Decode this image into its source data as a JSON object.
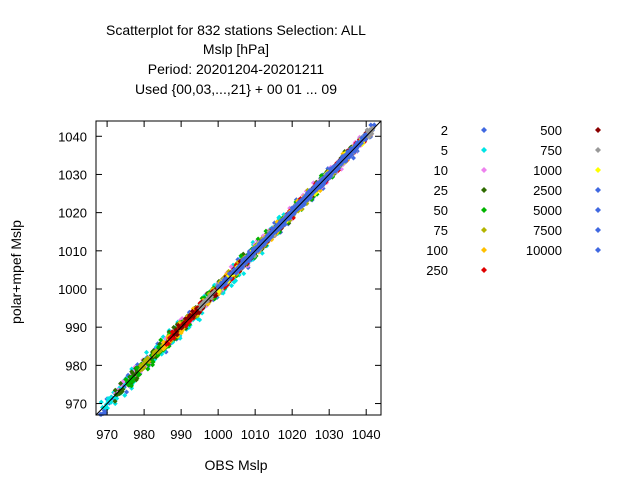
{
  "chart_data": {
    "type": "scatter",
    "title_lines": [
      "Scatterplot for  832 stations Selection: ALL",
      "Mslp [hPa]",
      "Period: 20201204-20201211",
      "Used {00,03,...,21} + 00 01 ... 09"
    ],
    "xlabel": "OBS Mslp",
    "ylabel": "polar+mpef Mslp",
    "xlim": [
      967,
      1044
    ],
    "ylim": [
      967,
      1044
    ],
    "xticks": [
      970,
      980,
      990,
      1000,
      1010,
      1020,
      1030,
      1040
    ],
    "yticks": [
      970,
      980,
      990,
      1000,
      1010,
      1020,
      1030,
      1040
    ],
    "grid": false,
    "legend_placement": "right",
    "reference_line": "y = x",
    "series": [
      {
        "name": "2",
        "color": "#4169e1",
        "x_range": [
          968,
          1043
        ],
        "spread": 2.0
      },
      {
        "name": "5",
        "color": "#00e5e5",
        "x_range": [
          968,
          1018
        ],
        "spread": 2.4
      },
      {
        "name": "10",
        "color": "#ee82ee",
        "x_range": [
          972,
          1040
        ],
        "spread": 1.8
      },
      {
        "name": "25",
        "color": "#2e6b00",
        "x_range": [
          972,
          1038
        ],
        "spread": 1.8
      },
      {
        "name": "50",
        "color": "#00b400",
        "x_range": [
          975,
          1035
        ],
        "spread": 2.0
      },
      {
        "name": "75",
        "color": "#b4b400",
        "x_range": [
          978,
          1030
        ],
        "spread": 1.5
      },
      {
        "name": "100",
        "color": "#ffc000",
        "x_range": [
          985,
          1035
        ],
        "spread": 1.4
      },
      {
        "name": "250",
        "color": "#e00000",
        "x_range": [
          986,
          1042
        ],
        "spread": 1.3
      },
      {
        "name": "500",
        "color": "#8b0000",
        "x_range": [
          988,
          1040
        ],
        "spread": 1.0
      },
      {
        "name": "750",
        "color": "#999999",
        "x_range": [
          995,
          1042
        ],
        "spread": 1.2
      },
      {
        "name": "1000",
        "color": "#ffff00",
        "x_range": [
          1000,
          1040
        ],
        "spread": 1.0
      },
      {
        "name": "2500",
        "color": "#4169e1",
        "x_range": [
          1000,
          1040
        ],
        "spread": 1.0
      },
      {
        "name": "5000",
        "color": "#4169e1",
        "x_range": [
          1005,
          1040
        ],
        "spread": 0.9
      },
      {
        "name": "7500",
        "color": "#4169e1",
        "x_range": [
          1008,
          1038
        ],
        "spread": 0.8
      },
      {
        "name": "10000",
        "color": "#4169e1",
        "x_range": [
          1010,
          1036
        ],
        "spread": 0.8
      }
    ]
  }
}
